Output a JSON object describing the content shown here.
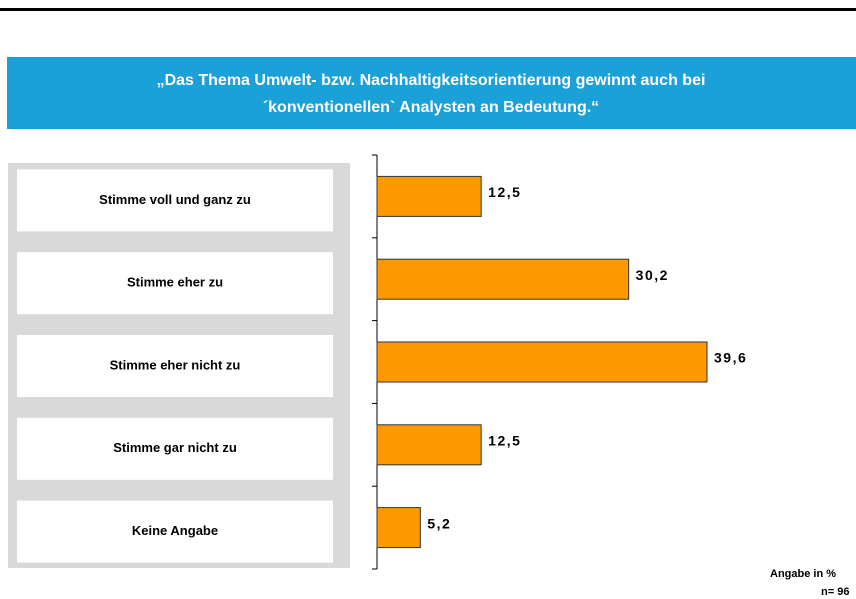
{
  "chart_data": {
    "type": "bar",
    "orientation": "horizontal",
    "title": [
      "„Das Thema Umwelt- bzw. Nachhaltigkeitsorientierung gewinnt auch bei",
      "´konventionellen` Analysten an Bedeutung.“"
    ],
    "categories": [
      "Stimme voll und ganz zu",
      "Stimme eher zu",
      "Stimme eher nicht zu",
      "Stimme gar nicht zu",
      "Keine Angabe"
    ],
    "values": [
      12.5,
      30.2,
      39.6,
      12.5,
      5.2
    ],
    "value_labels": [
      "12,5",
      "30,2",
      "39,6",
      "12,5",
      "5,2"
    ],
    "color": "#ff9900",
    "notes": [
      "Angabe in %",
      "n= 96"
    ]
  }
}
